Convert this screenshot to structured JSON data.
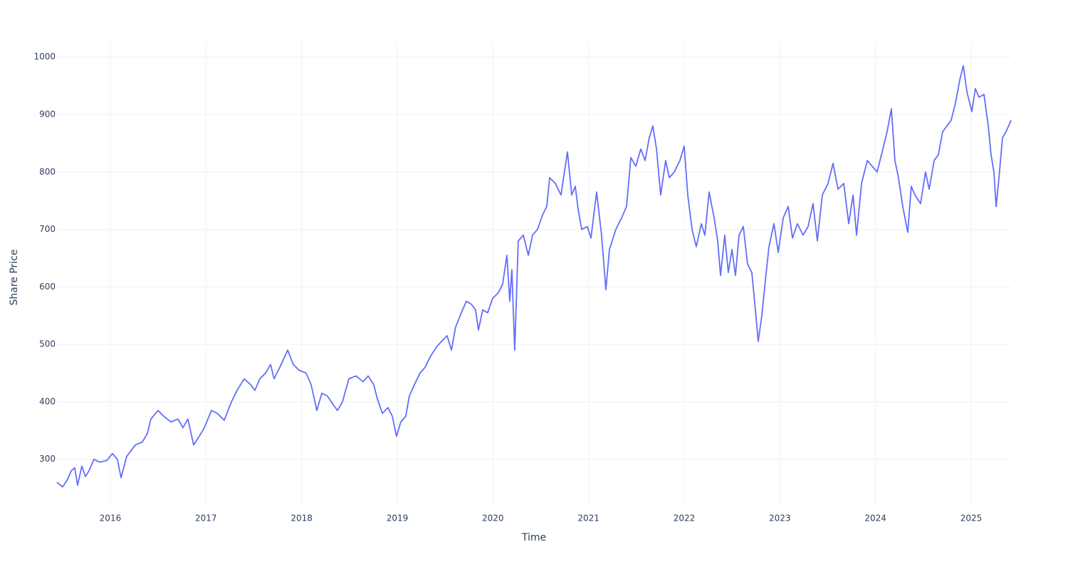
{
  "chart_data": {
    "type": "line",
    "x_label": "Time",
    "y_label": "Share Price",
    "color": "#636efa",
    "grid": true,
    "xlim": [
      2015.442,
      2025.417
    ],
    "ylim": [
      218,
      1025
    ],
    "xticks": [
      2016,
      2017,
      2018,
      2019,
      2020,
      2021,
      2022,
      2023,
      2024,
      2025
    ],
    "yticks": [
      300,
      400,
      500,
      600,
      700,
      800,
      900,
      1000
    ],
    "x": [
      2015.442,
      2015.501,
      2015.553,
      2015.591,
      2015.628,
      2015.658,
      2015.702,
      2015.739,
      2015.777,
      2015.829,
      2015.888,
      2015.963,
      2016.022,
      2016.074,
      2016.112,
      2016.171,
      2016.261,
      2016.335,
      2016.387,
      2016.424,
      2016.499,
      2016.558,
      2016.633,
      2016.707,
      2016.759,
      2016.811,
      2016.871,
      2016.93,
      2016.983,
      2017.057,
      2017.117,
      2017.191,
      2017.266,
      2017.325,
      2017.399,
      2017.466,
      2017.511,
      2017.563,
      2017.623,
      2017.675,
      2017.712,
      2017.772,
      2017.854,
      2017.913,
      2017.973,
      2018.047,
      2018.099,
      2018.159,
      2018.211,
      2018.27,
      2018.33,
      2018.375,
      2018.427,
      2018.494,
      2018.568,
      2018.643,
      2018.695,
      2018.754,
      2018.792,
      2018.844,
      2018.903,
      2018.948,
      2018.992,
      2019.037,
      2019.089,
      2019.126,
      2019.179,
      2019.238,
      2019.29,
      2019.35,
      2019.409,
      2019.461,
      2019.521,
      2019.566,
      2019.61,
      2019.67,
      2019.722,
      2019.774,
      2019.819,
      2019.849,
      2019.893,
      2019.945,
      2019.997,
      2020.057,
      2020.102,
      2020.146,
      2020.176,
      2020.198,
      2020.228,
      2020.265,
      2020.318,
      2020.37,
      2020.414,
      2020.466,
      2020.519,
      2020.563,
      2020.593,
      2020.653,
      2020.712,
      2020.779,
      2020.824,
      2020.861,
      2020.891,
      2020.928,
      2020.987,
      2021.025,
      2021.084,
      2021.136,
      2021.181,
      2021.218,
      2021.285,
      2021.345,
      2021.397,
      2021.442,
      2021.494,
      2021.546,
      2021.591,
      2021.635,
      2021.672,
      2021.71,
      2021.754,
      2021.806,
      2021.844,
      2021.896,
      2021.955,
      2022.0,
      2022.037,
      2022.082,
      2022.126,
      2022.179,
      2022.216,
      2022.26,
      2022.313,
      2022.35,
      2022.38,
      2022.424,
      2022.461,
      2022.499,
      2022.536,
      2022.573,
      2022.618,
      2022.662,
      2022.707,
      2022.744,
      2022.774,
      2022.811,
      2022.848,
      2022.886,
      2022.938,
      2022.983,
      2023.035,
      2023.087,
      2023.132,
      2023.183,
      2023.243,
      2023.295,
      2023.347,
      2023.392,
      2023.444,
      2023.504,
      2023.556,
      2023.608,
      2023.668,
      2023.72,
      2023.765,
      2023.802,
      2023.854,
      2023.914,
      2023.965,
      2024.017,
      2024.077,
      2024.121,
      2024.166,
      2024.203,
      2024.24,
      2024.285,
      2024.337,
      2024.374,
      2024.412,
      2024.471,
      2024.523,
      2024.561,
      2024.613,
      2024.657,
      2024.702,
      2024.747,
      2024.791,
      2024.836,
      2024.881,
      2024.918,
      2024.955,
      2025.007,
      2025.044,
      2025.082,
      2025.134,
      2025.179,
      2025.208,
      2025.238,
      2025.261,
      2025.291,
      2025.328,
      2025.365,
      2025.417
    ],
    "values": [
      260,
      252,
      265,
      280,
      285,
      255,
      288,
      270,
      280,
      300,
      295,
      298,
      310,
      300,
      268,
      305,
      325,
      330,
      345,
      370,
      385,
      375,
      365,
      370,
      355,
      370,
      325,
      340,
      355,
      385,
      380,
      368,
      400,
      420,
      440,
      430,
      420,
      440,
      450,
      465,
      440,
      460,
      490,
      465,
      455,
      450,
      430,
      385,
      415,
      410,
      395,
      385,
      400,
      440,
      445,
      435,
      445,
      430,
      405,
      380,
      390,
      375,
      340,
      365,
      375,
      410,
      430,
      450,
      460,
      480,
      495,
      505,
      515,
      490,
      530,
      555,
      575,
      570,
      560,
      525,
      560,
      555,
      580,
      590,
      605,
      655,
      575,
      630,
      490,
      680,
      690,
      655,
      690,
      700,
      725,
      740,
      790,
      780,
      760,
      835,
      760,
      775,
      735,
      700,
      705,
      685,
      765,
      690,
      595,
      665,
      700,
      720,
      740,
      825,
      810,
      840,
      820,
      860,
      880,
      840,
      760,
      820,
      790,
      800,
      820,
      845,
      760,
      700,
      670,
      710,
      690,
      765,
      720,
      680,
      620,
      690,
      625,
      665,
      620,
      690,
      705,
      640,
      625,
      560,
      505,
      550,
      610,
      670,
      710,
      660,
      720,
      740,
      685,
      710,
      690,
      705,
      745,
      680,
      760,
      780,
      815,
      770,
      780,
      710,
      760,
      690,
      780,
      820,
      810,
      800,
      840,
      870,
      910,
      820,
      790,
      740,
      695,
      775,
      760,
      745,
      800,
      770,
      820,
      830,
      870,
      880,
      890,
      920,
      960,
      985,
      940,
      905,
      945,
      930,
      935,
      880,
      830,
      800,
      740,
      790,
      860,
      870,
      890
    ]
  }
}
